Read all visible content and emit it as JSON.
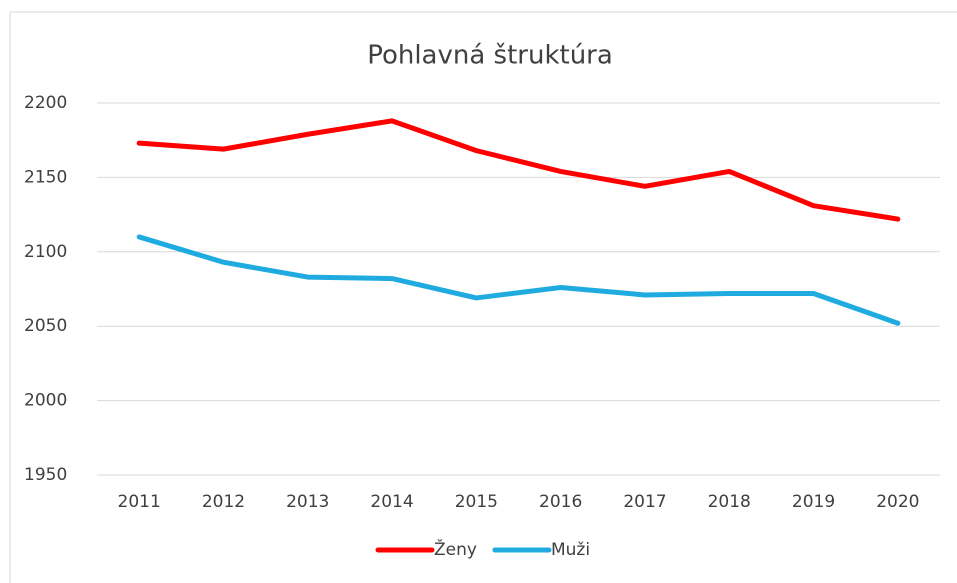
{
  "chart_data": {
    "type": "line",
    "title": "Pohlavná štruktúra",
    "categories": [
      "2011",
      "2012",
      "2013",
      "2014",
      "2015",
      "2016",
      "2017",
      "2018",
      "2019",
      "2020"
    ],
    "series": [
      {
        "name": "Ženy",
        "color": "#ff0000",
        "values": [
          2173,
          2169,
          2179,
          2188,
          2168,
          2154,
          2144,
          2154,
          2131,
          2122
        ]
      },
      {
        "name": "Muži",
        "color": "#1fabe0",
        "values": [
          2110,
          2093,
          2083,
          2082,
          2069,
          2076,
          2071,
          2072,
          2072,
          2052
        ]
      }
    ],
    "ylim": [
      1950,
      2200
    ],
    "yticks": [
      1950,
      2000,
      2050,
      2100,
      2150,
      2200
    ],
    "grid": true,
    "legend": "bottom"
  }
}
